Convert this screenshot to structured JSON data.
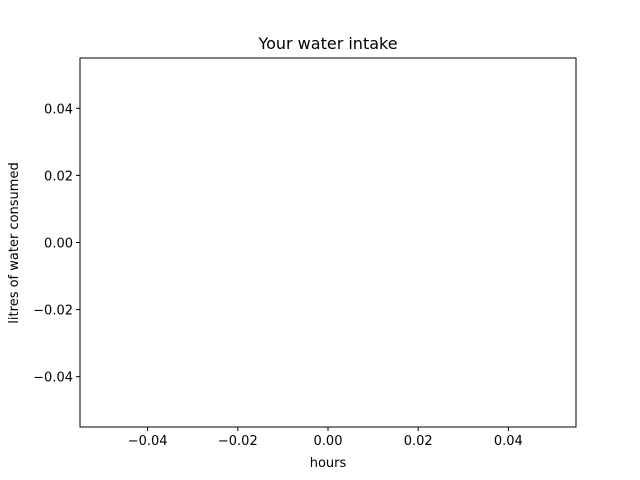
{
  "chart_data": {
    "type": "line",
    "title": "Your water intake",
    "xlabel": "hours",
    "ylabel": "litres of water consumed",
    "x": [],
    "series": [
      {
        "values": []
      }
    ],
    "xlim": [
      -0.055,
      0.055
    ],
    "ylim": [
      -0.055,
      0.055
    ],
    "xticks": [
      -0.04,
      -0.02,
      0.0,
      0.02,
      0.04
    ],
    "xtick_labels": [
      "−0.04",
      "−0.02",
      "0.00",
      "0.02",
      "0.04"
    ],
    "yticks": [
      -0.04,
      -0.02,
      0.0,
      0.02,
      0.04
    ],
    "ytick_labels": [
      "−0.04",
      "−0.02",
      "0.00",
      "0.02",
      "0.04"
    ],
    "grid": false,
    "legend": false
  }
}
